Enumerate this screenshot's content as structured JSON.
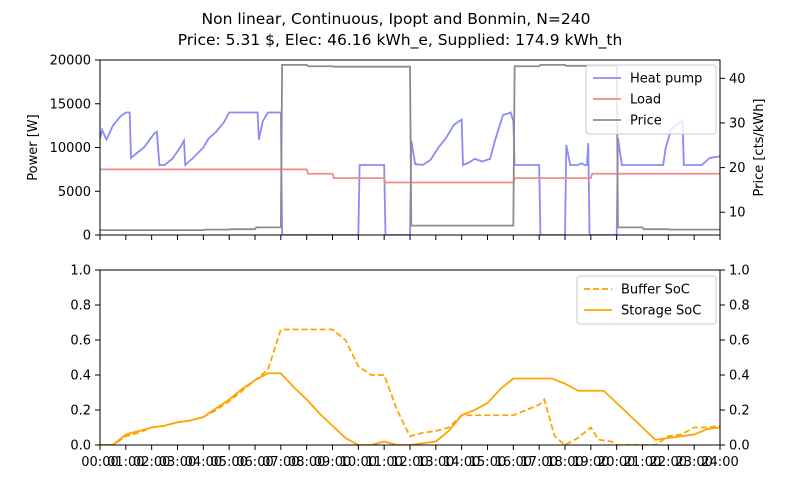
{
  "chart_data": [
    {
      "type": "line",
      "title_line1": "Non linear, Continuous, Ipopt and Bonmin, N=240",
      "title_line2": "Price: 5.31 $, Elec: 46.16 kWh_e, Supplied: 174.9 kWh_th",
      "ylabel": "Power [W]",
      "ylabel_right": "Price [cts/kWh]",
      "ylim": [
        0,
        20000
      ],
      "ylim_right": [
        4.9,
        44.1
      ],
      "yticks": [
        0,
        5000,
        10000,
        15000,
        20000
      ],
      "yticks_right": [
        10,
        20,
        30,
        40
      ],
      "xlim": [
        0,
        24
      ],
      "legend_position": "top-right",
      "series": [
        {
          "name": "Heat pump",
          "color": "#8b8bf8",
          "axis": "left",
          "points": [
            [
              0,
              11000
            ],
            [
              0.08,
              12000
            ],
            [
              0.25,
              10900
            ],
            [
              0.5,
              12500
            ],
            [
              0.8,
              13600
            ],
            [
              1.0,
              14000
            ],
            [
              1.15,
              14000
            ],
            [
              1.2,
              8800
            ],
            [
              1.4,
              9300
            ],
            [
              1.7,
              10000
            ],
            [
              1.9,
              10800
            ],
            [
              2.1,
              11600
            ],
            [
              2.2,
              11800
            ],
            [
              2.3,
              8000
            ],
            [
              2.5,
              8000
            ],
            [
              2.8,
              8700
            ],
            [
              3.1,
              10000
            ],
            [
              3.25,
              10800
            ],
            [
              3.3,
              8000
            ],
            [
              3.6,
              8800
            ],
            [
              4.0,
              10000
            ],
            [
              4.2,
              11000
            ],
            [
              4.5,
              11800
            ],
            [
              4.8,
              12900
            ],
            [
              5.0,
              14000
            ],
            [
              5.5,
              14000
            ],
            [
              6.0,
              14000
            ],
            [
              6.1,
              14000
            ],
            [
              6.15,
              10900
            ],
            [
              6.3,
              13000
            ],
            [
              6.5,
              14000
            ],
            [
              7.0,
              14000
            ],
            [
              7.05,
              0
            ],
            [
              8.0,
              0
            ],
            [
              9.0,
              0
            ],
            [
              10.0,
              0
            ],
            [
              10.05,
              8000
            ],
            [
              10.5,
              8000
            ],
            [
              11.0,
              8000
            ],
            [
              11.05,
              0
            ],
            [
              12.0,
              0
            ],
            [
              12.05,
              10800
            ],
            [
              12.2,
              8100
            ],
            [
              12.5,
              8000
            ],
            [
              12.8,
              8600
            ],
            [
              13.1,
              10000
            ],
            [
              13.4,
              11100
            ],
            [
              13.7,
              12600
            ],
            [
              14.0,
              13200
            ],
            [
              14.05,
              8000
            ],
            [
              14.3,
              8300
            ],
            [
              14.5,
              8700
            ],
            [
              14.8,
              8400
            ],
            [
              15.1,
              8700
            ],
            [
              15.3,
              10900
            ],
            [
              15.6,
              13700
            ],
            [
              15.9,
              14000
            ],
            [
              16.0,
              13000
            ],
            [
              16.05,
              8000
            ],
            [
              16.5,
              8000
            ],
            [
              17.0,
              8000
            ],
            [
              17.05,
              0
            ],
            [
              18.0,
              0
            ],
            [
              18.05,
              10300
            ],
            [
              18.2,
              8000
            ],
            [
              18.5,
              8000
            ],
            [
              18.65,
              8200
            ],
            [
              18.75,
              8000
            ],
            [
              18.85,
              8000
            ],
            [
              18.9,
              10500
            ],
            [
              18.95,
              0
            ],
            [
              20.0,
              0
            ],
            [
              20.05,
              11100
            ],
            [
              20.2,
              8000
            ],
            [
              20.5,
              8000
            ],
            [
              21.0,
              8000
            ],
            [
              21.5,
              8000
            ],
            [
              21.8,
              8000
            ],
            [
              21.9,
              10000
            ],
            [
              22.1,
              12000
            ],
            [
              22.3,
              12600
            ],
            [
              22.55,
              13000
            ],
            [
              22.6,
              8000
            ],
            [
              22.8,
              8000
            ],
            [
              23.1,
              8000
            ],
            [
              23.3,
              8000
            ],
            [
              23.6,
              8800
            ],
            [
              24.0,
              9000
            ]
          ]
        },
        {
          "name": "Load",
          "color": "#f08c8c",
          "axis": "left",
          "points": [
            [
              0,
              7500
            ],
            [
              7.0,
              7500
            ],
            [
              8.0,
              7500
            ],
            [
              8.05,
              7000
            ],
            [
              9.0,
              7000
            ],
            [
              9.05,
              6500
            ],
            [
              10.0,
              6500
            ],
            [
              11.0,
              6500
            ],
            [
              11.05,
              6000
            ],
            [
              12.0,
              6000
            ],
            [
              16.0,
              6000
            ],
            [
              16.05,
              6500
            ],
            [
              17.0,
              6500
            ],
            [
              18.0,
              6500
            ],
            [
              19.0,
              6500
            ],
            [
              19.05,
              7000
            ],
            [
              24.0,
              7000
            ]
          ]
        },
        {
          "name": "Price",
          "color": "#8c8c8c",
          "axis": "right",
          "points": [
            [
              0,
              6.0
            ],
            [
              4.0,
              6.0
            ],
            [
              4.05,
              6.1
            ],
            [
              5.0,
              6.1
            ],
            [
              5.05,
              6.2
            ],
            [
              6.0,
              6.2
            ],
            [
              6.05,
              6.6
            ],
            [
              7.0,
              6.6
            ],
            [
              7.05,
              43.0
            ],
            [
              8.0,
              43.0
            ],
            [
              8.05,
              42.7
            ],
            [
              9.0,
              42.7
            ],
            [
              9.05,
              42.6
            ],
            [
              10.0,
              42.6
            ],
            [
              11.0,
              42.6
            ],
            [
              12.0,
              42.6
            ],
            [
              12.05,
              7.0
            ],
            [
              16.0,
              7.0
            ],
            [
              16.05,
              42.7
            ],
            [
              17.0,
              42.7
            ],
            [
              17.05,
              43.0
            ],
            [
              18.0,
              43.0
            ],
            [
              18.05,
              42.8
            ],
            [
              20.0,
              42.8
            ],
            [
              20.05,
              6.6
            ],
            [
              21.0,
              6.6
            ],
            [
              21.05,
              6.2
            ],
            [
              22.0,
              6.2
            ],
            [
              22.05,
              6.1
            ],
            [
              24.0,
              6.1
            ]
          ]
        }
      ]
    },
    {
      "type": "line",
      "ylim": [
        0,
        1.0
      ],
      "ylim_right": [
        0,
        1.0
      ],
      "yticks": [
        0.0,
        0.2,
        0.4,
        0.6,
        0.8,
        1.0
      ],
      "xlim": [
        0,
        24
      ],
      "xticks": [
        "00:00",
        "01:00",
        "02:00",
        "03:00",
        "04:00",
        "05:00",
        "06:00",
        "07:00",
        "08:00",
        "09:00",
        "10:00",
        "11:00",
        "12:00",
        "13:00",
        "14:00",
        "15:00",
        "16:00",
        "17:00",
        "18:00",
        "19:00",
        "20:00",
        "21:00",
        "22:00",
        "23:00",
        "24:00"
      ],
      "legend_position": "top-right",
      "series": [
        {
          "name": "Buffer SoC",
          "color": "#ffa500",
          "dash": "dashed",
          "points": [
            [
              0,
              0
            ],
            [
              0.5,
              0.0
            ],
            [
              1.0,
              0.05
            ],
            [
              1.5,
              0.07
            ],
            [
              2.0,
              0.1
            ],
            [
              2.5,
              0.11
            ],
            [
              3.0,
              0.13
            ],
            [
              3.5,
              0.14
            ],
            [
              4.0,
              0.16
            ],
            [
              4.5,
              0.2
            ],
            [
              5.0,
              0.25
            ],
            [
              5.5,
              0.31
            ],
            [
              6.0,
              0.37
            ],
            [
              6.5,
              0.43
            ],
            [
              7.0,
              0.66
            ],
            [
              8.0,
              0.66
            ],
            [
              9.0,
              0.66
            ],
            [
              9.5,
              0.6
            ],
            [
              10.0,
              0.45
            ],
            [
              10.5,
              0.4
            ],
            [
              11.0,
              0.4
            ],
            [
              11.5,
              0.2
            ],
            [
              12.0,
              0.05
            ],
            [
              12.5,
              0.07
            ],
            [
              13.0,
              0.08
            ],
            [
              13.5,
              0.1
            ],
            [
              14.0,
              0.17
            ],
            [
              15.0,
              0.17
            ],
            [
              16.0,
              0.17
            ],
            [
              16.5,
              0.2
            ],
            [
              17.0,
              0.23
            ],
            [
              17.2,
              0.26
            ],
            [
              17.6,
              0.05
            ],
            [
              18.0,
              0.0
            ],
            [
              18.5,
              0.04
            ],
            [
              19.0,
              0.1
            ],
            [
              19.3,
              0.03
            ],
            [
              19.8,
              0.02
            ],
            [
              20.0,
              0.0
            ],
            [
              21.0,
              0.0
            ],
            [
              21.5,
              0.0
            ],
            [
              22.0,
              0.05
            ],
            [
              22.5,
              0.06
            ],
            [
              23.0,
              0.1
            ],
            [
              23.5,
              0.1
            ],
            [
              24.0,
              0.11
            ]
          ]
        },
        {
          "name": "Storage SoC",
          "color": "#ffa500",
          "dash": "solid",
          "points": [
            [
              0,
              0
            ],
            [
              0.5,
              0.0
            ],
            [
              1.0,
              0.06
            ],
            [
              1.5,
              0.08
            ],
            [
              2.0,
              0.1
            ],
            [
              2.5,
              0.11
            ],
            [
              3.0,
              0.13
            ],
            [
              3.5,
              0.14
            ],
            [
              4.0,
              0.16
            ],
            [
              4.5,
              0.21
            ],
            [
              5.0,
              0.26
            ],
            [
              5.5,
              0.32
            ],
            [
              6.0,
              0.37
            ],
            [
              6.5,
              0.41
            ],
            [
              7.0,
              0.41
            ],
            [
              7.5,
              0.33
            ],
            [
              8.0,
              0.26
            ],
            [
              8.5,
              0.18
            ],
            [
              9.0,
              0.11
            ],
            [
              9.5,
              0.04
            ],
            [
              10.0,
              0.0
            ],
            [
              10.5,
              0.0
            ],
            [
              11.0,
              0.02
            ],
            [
              11.5,
              0.0
            ],
            [
              12.0,
              0.0
            ],
            [
              12.5,
              0.01
            ],
            [
              13.0,
              0.02
            ],
            [
              13.5,
              0.08
            ],
            [
              14.0,
              0.17
            ],
            [
              14.5,
              0.2
            ],
            [
              15.0,
              0.24
            ],
            [
              15.5,
              0.32
            ],
            [
              16.0,
              0.38
            ],
            [
              16.5,
              0.38
            ],
            [
              17.0,
              0.38
            ],
            [
              17.5,
              0.38
            ],
            [
              18.0,
              0.35
            ],
            [
              18.5,
              0.31
            ],
            [
              19.0,
              0.31
            ],
            [
              19.5,
              0.31
            ],
            [
              20.0,
              0.24
            ],
            [
              20.5,
              0.17
            ],
            [
              21.0,
              0.1
            ],
            [
              21.5,
              0.03
            ],
            [
              22.0,
              0.04
            ],
            [
              22.5,
              0.05
            ],
            [
              23.0,
              0.06
            ],
            [
              23.5,
              0.09
            ],
            [
              24.0,
              0.1
            ]
          ]
        }
      ]
    }
  ]
}
